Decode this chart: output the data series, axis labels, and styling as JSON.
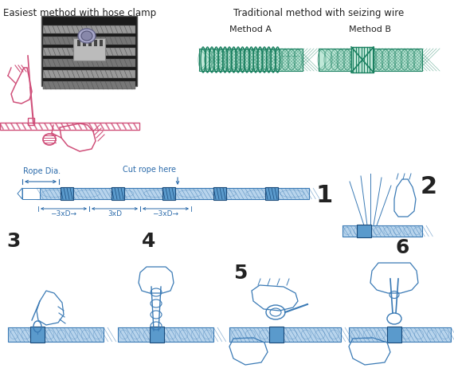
{
  "background_color": "#ffffff",
  "top_left_text": "Easiest method with hose clamp",
  "top_right_text": "Traditional method with seizing wire",
  "method_a_text": "Method A",
  "method_b_text": "Method B",
  "rope_dia_text": "Rope Dia.",
  "cut_rope_text": "Cut rope here",
  "label1": "1",
  "label2": "2",
  "label3": "3",
  "label4": "4",
  "label5": "5",
  "label6": "6",
  "pink_color": "#d0507a",
  "blue_color": "#3a7ab5",
  "blue_light": "#b8d4ec",
  "blue_mid": "#5a9acc",
  "blue_dark": "#1a4a7a",
  "green_color": "#1a8060",
  "green_light": "#c0e8d8",
  "gray_dark": "#444444",
  "gray_mid": "#888888",
  "gray_light": "#cccccc",
  "text_color": "#222222",
  "text_blue": "#2a6aaa",
  "figsize": [
    5.7,
    4.62
  ],
  "dpi": 100
}
